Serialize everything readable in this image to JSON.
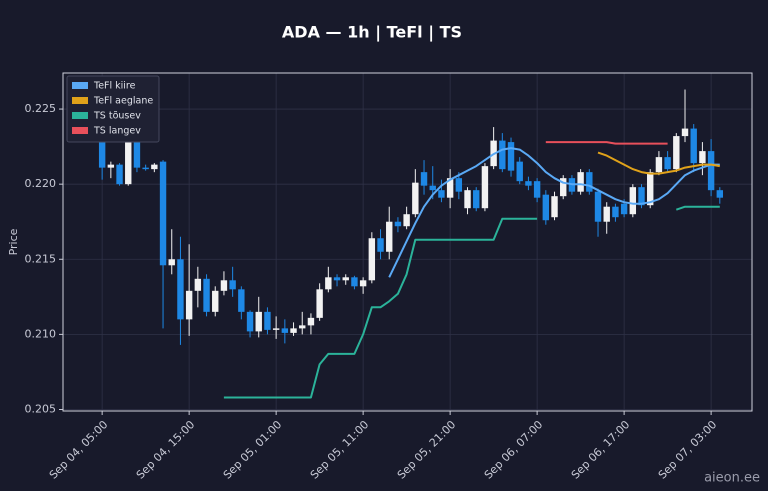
{
  "chart_data": {
    "type": "candlestick",
    "title": "ADA — 1h  |  TeFl  |  TS",
    "y_label": "Price",
    "watermark": "aieon.ee",
    "categories": [
      "Sep 04, 05:00",
      null,
      null,
      null,
      null,
      null,
      null,
      null,
      null,
      null,
      "Sep 04, 15:00",
      null,
      null,
      null,
      null,
      null,
      null,
      null,
      null,
      null,
      "Sep 05, 01:00",
      null,
      null,
      null,
      null,
      null,
      null,
      null,
      null,
      null,
      "Sep 05, 11:00",
      null,
      null,
      null,
      null,
      null,
      null,
      null,
      null,
      null,
      "Sep 05, 21:00",
      null,
      null,
      null,
      null,
      null,
      null,
      null,
      null,
      null,
      "Sep 06, 07:00",
      null,
      null,
      null,
      null,
      null,
      null,
      null,
      null,
      null,
      "Sep 06, 17:00",
      null,
      null,
      null,
      null,
      null,
      null,
      null,
      null,
      null,
      "Sep 07, 03:00",
      null
    ],
    "open": [
      0.2232,
      0.2211,
      0.2213,
      0.22,
      0.2229,
      0.2211,
      0.221,
      0.2215,
      0.2146,
      0.215,
      0.211,
      0.2129,
      0.2137,
      0.2115,
      0.2129,
      0.2136,
      0.213,
      0.2115,
      0.2102,
      0.2115,
      0.2103,
      0.2104,
      0.2101,
      0.2104,
      0.2106,
      0.2111,
      0.213,
      0.2138,
      0.2136,
      0.2138,
      0.2132,
      0.2136,
      0.2164,
      0.2155,
      0.2175,
      0.2172,
      0.218,
      0.2208,
      0.2199,
      0.2196,
      0.2191,
      0.2204,
      0.2184,
      0.2196,
      0.2184,
      0.2212,
      0.2229,
      0.2228,
      0.2215,
      0.2202,
      0.2202,
      0.2193,
      0.2178,
      0.2192,
      0.2204,
      0.2195,
      0.2208,
      0.2195,
      0.2175,
      0.2185,
      0.2187,
      0.218,
      0.2198,
      0.2186,
      0.2208,
      0.2218,
      0.221,
      0.2232,
      0.2237,
      0.2214,
      0.2222,
      0.2196
    ],
    "high": [
      0.2236,
      0.2215,
      0.2214,
      0.2238,
      0.2232,
      0.2213,
      0.2214,
      0.2216,
      0.217,
      0.2165,
      0.216,
      0.2145,
      0.214,
      0.2132,
      0.2142,
      0.2145,
      0.2132,
      0.2116,
      0.2125,
      0.2118,
      0.2112,
      0.211,
      0.2108,
      0.2115,
      0.2114,
      0.2134,
      0.2145,
      0.214,
      0.214,
      0.2139,
      0.2138,
      0.2168,
      0.217,
      0.2185,
      0.2178,
      0.2185,
      0.221,
      0.2216,
      0.2212,
      0.2203,
      0.221,
      0.2208,
      0.2198,
      0.2198,
      0.2214,
      0.2238,
      0.2234,
      0.2231,
      0.2218,
      0.2205,
      0.2204,
      0.2196,
      0.2195,
      0.2206,
      0.2206,
      0.221,
      0.221,
      0.2197,
      0.2188,
      0.2187,
      0.219,
      0.22,
      0.22,
      0.221,
      0.2222,
      0.2222,
      0.2234,
      0.2263,
      0.224,
      0.2228,
      0.223,
      0.2198
    ],
    "low": [
      0.2203,
      0.2204,
      0.2199,
      0.2199,
      0.2208,
      0.2209,
      0.2208,
      0.2104,
      0.214,
      0.2093,
      0.2099,
      0.2118,
      0.2112,
      0.2112,
      0.2126,
      0.2125,
      0.211,
      0.2098,
      0.2098,
      0.21,
      0.2097,
      0.2094,
      0.2099,
      0.21,
      0.21,
      0.2109,
      0.2128,
      0.2132,
      0.2133,
      0.213,
      0.2127,
      0.2134,
      0.215,
      0.215,
      0.2168,
      0.217,
      0.2178,
      0.2193,
      0.219,
      0.2188,
      0.2184,
      0.219,
      0.218,
      0.2182,
      0.2182,
      0.221,
      0.2208,
      0.2205,
      0.22,
      0.2196,
      0.2188,
      0.2173,
      0.2176,
      0.219,
      0.2193,
      0.2193,
      0.2193,
      0.2165,
      0.2167,
      0.2175,
      0.2178,
      0.2178,
      0.2184,
      0.2184,
      0.2206,
      0.2208,
      0.2208,
      0.2228,
      0.2208,
      0.2206,
      0.2192,
      0.2187
    ],
    "close": [
      0.2211,
      0.2213,
      0.22,
      0.223,
      0.2211,
      0.221,
      0.2213,
      0.2146,
      0.215,
      0.211,
      0.2129,
      0.2137,
      0.2115,
      0.2129,
      0.2136,
      0.213,
      0.2115,
      0.2102,
      0.2115,
      0.2103,
      0.2104,
      0.2101,
      0.2104,
      0.2106,
      0.2111,
      0.213,
      0.2138,
      0.2136,
      0.2138,
      0.2132,
      0.2136,
      0.2164,
      0.2155,
      0.2175,
      0.2172,
      0.218,
      0.2201,
      0.2199,
      0.2196,
      0.2191,
      0.2204,
      0.2195,
      0.2196,
      0.2184,
      0.2212,
      0.2229,
      0.221,
      0.2209,
      0.2202,
      0.2199,
      0.2191,
      0.2176,
      0.2192,
      0.2204,
      0.2195,
      0.2208,
      0.2195,
      0.2175,
      0.2185,
      0.2178,
      0.218,
      0.2198,
      0.2186,
      0.2208,
      0.2218,
      0.221,
      0.2232,
      0.2237,
      0.2214,
      0.2222,
      0.2196,
      0.2191
    ],
    "up_color": "#f2f2f2",
    "down_color": "#1e88e5",
    "series": [
      {
        "name": "TeFl kiire",
        "color": "#5aa9f5",
        "style": "line",
        "values": [
          null,
          null,
          null,
          null,
          null,
          null,
          null,
          null,
          null,
          null,
          null,
          null,
          null,
          null,
          null,
          null,
          null,
          null,
          null,
          null,
          null,
          null,
          null,
          null,
          null,
          null,
          null,
          null,
          null,
          null,
          null,
          null,
          null,
          0.2138,
          0.215,
          0.2162,
          0.2174,
          0.2185,
          0.2193,
          0.2199,
          0.2203,
          0.2206,
          0.2209,
          0.2212,
          0.2216,
          0.222,
          0.2223,
          0.2224,
          0.2223,
          0.2219,
          0.2214,
          0.2208,
          0.2204,
          0.2201,
          0.22,
          0.22,
          0.2199,
          0.2196,
          0.2193,
          0.219,
          0.2188,
          0.2187,
          0.2187,
          0.2188,
          0.219,
          0.2194,
          0.22,
          0.2206,
          0.2209,
          0.2211,
          0.2213,
          0.2213
        ]
      },
      {
        "name": "TeFl aeglane",
        "color": "#e0a21a",
        "style": "line",
        "values": [
          null,
          null,
          null,
          null,
          null,
          null,
          null,
          null,
          null,
          null,
          null,
          null,
          null,
          null,
          null,
          null,
          null,
          null,
          null,
          null,
          null,
          null,
          null,
          null,
          null,
          null,
          null,
          null,
          null,
          null,
          null,
          null,
          null,
          null,
          null,
          null,
          null,
          null,
          null,
          null,
          null,
          null,
          null,
          null,
          null,
          null,
          null,
          null,
          null,
          null,
          null,
          null,
          null,
          null,
          null,
          null,
          null,
          0.2221,
          0.2219,
          0.2216,
          0.2213,
          0.221,
          0.2208,
          0.2207,
          0.2207,
          0.2208,
          0.2209,
          0.2211,
          0.2212,
          0.2213,
          0.2213,
          0.2212
        ]
      },
      {
        "name": "TS tõusev",
        "color": "#2bb39a",
        "style": "line",
        "values": [
          null,
          null,
          null,
          null,
          null,
          null,
          null,
          null,
          null,
          null,
          null,
          null,
          null,
          null,
          0.2058,
          0.2058,
          0.2058,
          0.2058,
          0.2058,
          0.2058,
          0.2058,
          0.2058,
          0.2058,
          0.2058,
          0.2058,
          0.208,
          0.2087,
          0.2087,
          0.2087,
          0.2087,
          0.21,
          0.2118,
          0.2118,
          0.2122,
          0.2127,
          0.214,
          0.2163,
          0.2163,
          0.2163,
          0.2163,
          0.2163,
          0.2163,
          0.2163,
          0.2163,
          0.2163,
          0.2163,
          0.2177,
          0.2177,
          0.2177,
          0.2177,
          0.2177,
          null,
          null,
          null,
          null,
          null,
          null,
          null,
          null,
          null,
          null,
          null,
          null,
          null,
          null,
          null,
          0.2183,
          0.2185,
          0.2185,
          0.2185,
          0.2185,
          0.2185
        ]
      },
      {
        "name": "TS langev",
        "color": "#e8505b",
        "style": "line",
        "values": [
          null,
          null,
          null,
          null,
          null,
          null,
          null,
          null,
          null,
          null,
          null,
          null,
          null,
          null,
          null,
          null,
          null,
          null,
          null,
          null,
          null,
          null,
          null,
          null,
          null,
          null,
          null,
          null,
          null,
          null,
          null,
          null,
          null,
          null,
          null,
          null,
          null,
          null,
          null,
          null,
          null,
          null,
          null,
          null,
          null,
          null,
          null,
          null,
          null,
          null,
          null,
          0.2228,
          0.2228,
          0.2228,
          0.2228,
          0.2228,
          0.2228,
          0.2228,
          0.2228,
          0.2227,
          0.2227,
          0.2227,
          0.2227,
          0.2227,
          0.2227,
          0.2227,
          null,
          null,
          null,
          null,
          null,
          null
        ]
      }
    ],
    "ylim": [
      0.2049,
      0.2274
    ],
    "yticks": [
      0.205,
      {
        "value": 0.21,
        "label": "0.210"
      },
      0.215,
      {
        "value": 0.22,
        "label": "0.220"
      },
      0.225
    ],
    "grid": true,
    "legend": "upper left"
  }
}
